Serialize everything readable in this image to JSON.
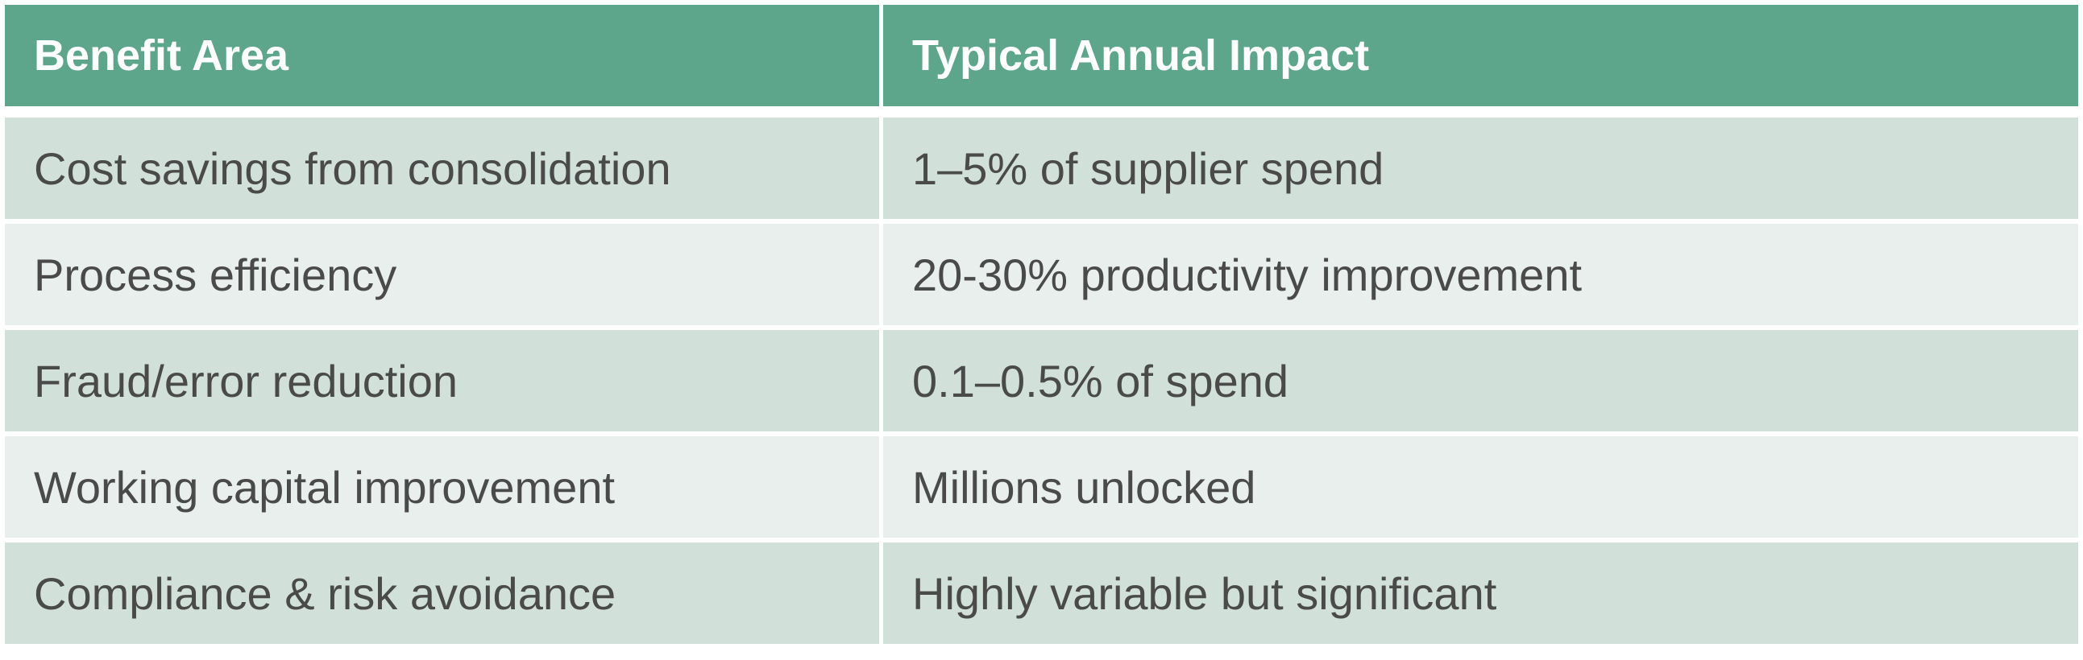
{
  "table": {
    "headers": [
      "Benefit Area",
      "Typical Annual Impact"
    ],
    "rows": [
      [
        "Cost savings from consolidation",
        "1–5% of supplier spend"
      ],
      [
        "Process efficiency",
        "20-30% productivity improvement"
      ],
      [
        "Fraud/error reduction",
        "0.1–0.5% of spend"
      ],
      [
        "Working capital improvement",
        "Millions unlocked"
      ],
      [
        "Compliance & risk avoidance",
        "Highly variable but significant"
      ]
    ]
  },
  "colors": {
    "header_bg": "#5ea68b",
    "header_text": "#ffffff",
    "row_dark_bg": "#d2e0da",
    "row_light_bg": "#e9efec",
    "body_text": "#4a4a4a"
  }
}
